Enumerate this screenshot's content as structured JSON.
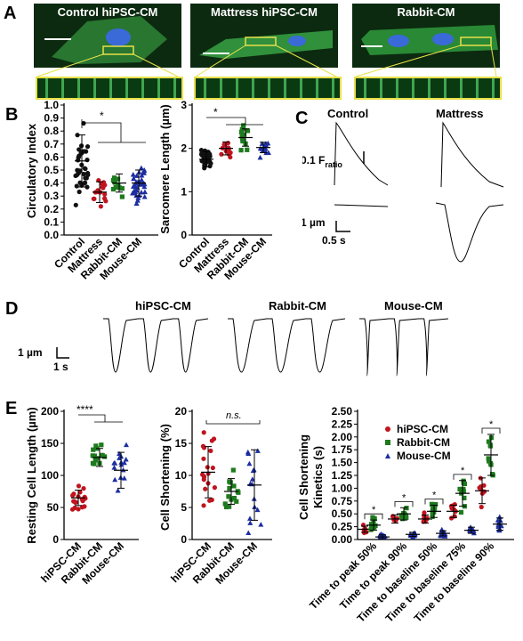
{
  "panels": {
    "A": "A",
    "B": "B",
    "C": "C",
    "D": "D",
    "E": "E"
  },
  "panelA": {
    "titles": [
      "Control hiPSC-CM",
      "Mattress hiPSC-CM",
      "Rabbit-CM"
    ]
  },
  "panelB": {
    "left": {
      "ylabel": "Circulatory Index",
      "yticks": [
        "0.0",
        "0.1",
        "0.2",
        "0.3",
        "0.4",
        "0.5",
        "0.6",
        "0.7",
        "0.8",
        "0.9",
        "1.0"
      ],
      "categories": [
        "Control",
        "Mattress",
        "Rabbit-CM",
        "Mouse-CM"
      ],
      "sig": "*"
    },
    "right": {
      "ylabel": "Sarcomere Length (µm)",
      "yticks": [
        "0",
        "1",
        "2",
        "3"
      ],
      "categories": [
        "Control",
        "Mattress",
        "Rabbit-CM",
        "Mouse-CM"
      ],
      "sig": "*"
    }
  },
  "panelC": {
    "col1": "Control",
    "col2": "Mattress",
    "fratio_main": "0.1 F",
    "fratio_sub": "ratio",
    "len_scale": "1 µm",
    "time_scale": "0.5 s"
  },
  "panelD": {
    "titles": [
      "hiPSC-CM",
      "Rabbit-CM",
      "Mouse-CM"
    ],
    "len_scale": "1 µm",
    "time_scale": "1 s"
  },
  "panelE": {
    "left": {
      "ylabel": "Resting Cell Length (µm)",
      "yticks": [
        "0",
        "50",
        "100",
        "150",
        "200"
      ],
      "categories": [
        "hiPSC-CM",
        "Rabbit-CM",
        "Mouse-CM"
      ],
      "sig": "****"
    },
    "mid": {
      "ylabel": "Cell Shortening (%)",
      "yticks": [
        "0",
        "5",
        "10",
        "15",
        "20"
      ],
      "categories": [
        "hiPSC-CM",
        "Rabbit-CM",
        "Mouse-CM"
      ],
      "sig": "n.s."
    },
    "right": {
      "ylabel1": "Cell Shortening",
      "ylabel2": "Kinetics (s)",
      "yticks": [
        "0.00",
        "0.25",
        "0.50",
        "0.75",
        "1.00",
        "1.25",
        "1.50",
        "1.75",
        "2.00",
        "2.25",
        "2.50"
      ],
      "categories": [
        "Time to peak 50%",
        "Time to peak 90%",
        "Time to baseline 50%",
        "Time to baseline 75%",
        "Time to baseline 90%"
      ],
      "legend": [
        "hiPSC-CM",
        "Rabbit-CM",
        "Mouse-CM"
      ],
      "sig": "*"
    }
  },
  "colors": {
    "control": "#111111",
    "mattress": "#c0141e",
    "rabbit": "#1e7a1e",
    "mouse": "#1c2ea0",
    "zoombox": "#e8e04a"
  },
  "chart_data": [
    {
      "type": "scatter",
      "title": "",
      "ylabel": "Circulatory Index",
      "ylim": [
        0,
        1.0
      ],
      "categories": [
        "Control",
        "Mattress",
        "Rabbit-CM",
        "Mouse-CM"
      ],
      "series": [
        {
          "values": [
            0.57,
            0.33,
            0.4,
            0.4
          ]
        }
      ]
    },
    {
      "type": "scatter",
      "title": "",
      "ylabel": "Sarcomere Length (µm)",
      "ylim": [
        0,
        3
      ],
      "categories": [
        "Control",
        "Mattress",
        "Rabbit-CM",
        "Mouse-CM"
      ],
      "series": [
        {
          "values": [
            1.75,
            2.0,
            2.25,
            2.02
          ]
        }
      ]
    },
    {
      "type": "scatter",
      "title": "",
      "ylabel": "Resting Cell Length (µm)",
      "ylim": [
        0,
        200
      ],
      "categories": [
        "hiPSC-CM",
        "Rabbit-CM",
        "Mouse-CM"
      ],
      "series": [
        {
          "values": [
            65,
            128,
            108
          ]
        }
      ]
    },
    {
      "type": "scatter",
      "title": "",
      "ylabel": "Cell Shortening (%)",
      "ylim": [
        0,
        20
      ],
      "categories": [
        "hiPSC-CM",
        "Rabbit-CM",
        "Mouse-CM"
      ],
      "series": [
        {
          "values": [
            10.5,
            7.5,
            8.5
          ]
        }
      ]
    },
    {
      "type": "scatter",
      "title": "",
      "ylabel": "Cell Shortening Kinetics (s)",
      "ylim": [
        0,
        2.5
      ],
      "categories": [
        "Time to peak 50%",
        "Time to peak 90%",
        "Time to baseline 50%",
        "Time to baseline 75%",
        "Time to baseline 90%"
      ],
      "series": [
        {
          "name": "hiPSC-CM",
          "values": [
            0.2,
            0.4,
            0.4,
            0.55,
            0.95
          ]
        },
        {
          "name": "Rabbit-CM",
          "values": [
            0.28,
            0.5,
            0.55,
            0.9,
            1.65
          ]
        },
        {
          "name": "Mouse-CM",
          "values": [
            0.05,
            0.1,
            0.12,
            0.18,
            0.3
          ]
        }
      ]
    }
  ]
}
